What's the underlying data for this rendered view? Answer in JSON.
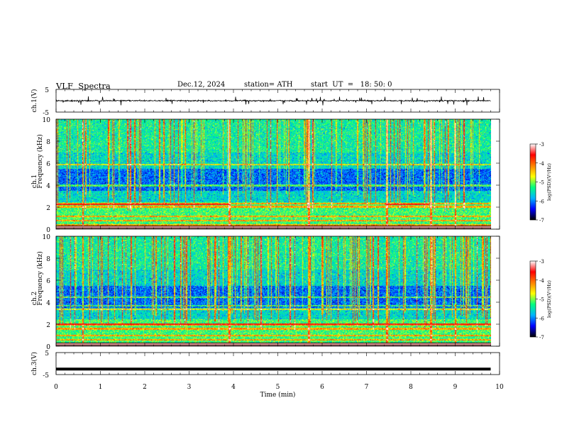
{
  "header": {
    "title": "VLF  Spectra",
    "date": "Dec.12, 2024",
    "station": "station= ATH",
    "start": "start  UT  =   18: 50: 0"
  },
  "chart_data": [
    {
      "type": "line",
      "panel": "ch1-waveform",
      "ylabel": "ch.1(V)",
      "ylim": [
        -5,
        5
      ],
      "y_ticks": [
        "5",
        "-5"
      ],
      "x_range": [
        0,
        9.8
      ],
      "mean_level": 0.0,
      "spike_range": [
        -2,
        2
      ],
      "noise": "dense"
    },
    {
      "type": "heatmap",
      "panel": "ch1-spectrogram",
      "ylabel": "Frequency  (kHz)",
      "channel_label": "ch.1",
      "ylim": [
        0,
        10
      ],
      "y_ticks": [
        "0",
        "2",
        "4",
        "6",
        "8",
        "10"
      ],
      "x_range": [
        0,
        9.8
      ],
      "colorbar": {
        "label": "log(PSD)(V²/Hz)",
        "range": [
          -7,
          -3
        ],
        "ticks": [
          "-3",
          "-4",
          "-5",
          "-6",
          "-7"
        ],
        "colors": [
          "#000000",
          "#0000ff",
          "#00b4ff",
          "#00ff80",
          "#ffff00",
          "#ff8000",
          "#ff0000",
          "#ffffff"
        ]
      },
      "horizontal_lines_kHz": [
        0.4,
        0.8,
        1.2,
        2.05,
        2.35,
        4.0,
        5.9
      ],
      "bright_line_kHz": 2.3,
      "bright_line_segments_min": [
        [
          0,
          3.9
        ],
        [
          7.4,
          8.4
        ]
      ],
      "broadband_events_min": [
        0.6,
        3.9,
        5.7,
        7.45,
        8.45,
        9.0
      ]
    },
    {
      "type": "heatmap",
      "panel": "ch2-spectrogram",
      "ylabel": "Frequency  (kHz)",
      "channel_label": "ch.2",
      "ylim": [
        0,
        10
      ],
      "y_ticks": [
        "0",
        "2",
        "4",
        "6",
        "8",
        "10"
      ],
      "x_range": [
        0,
        9.8
      ],
      "colorbar": {
        "label": "log(PSD)(V²/Hz)",
        "range": [
          -7,
          -3
        ],
        "ticks": [
          "-3",
          "-4",
          "-5",
          "-6",
          "-7"
        ],
        "colors": [
          "#000000",
          "#0000ff",
          "#00b4ff",
          "#00ff80",
          "#ffff00",
          "#ff8000",
          "#ff0000",
          "#ffffff"
        ]
      },
      "horizontal_lines_kHz": [
        0.6,
        1.0,
        1.6,
        2.0,
        3.4,
        3.7,
        4.5
      ],
      "bright_line_kHz": 2.05,
      "bright_line_segments_min": [
        [
          0,
          9.8
        ]
      ],
      "broadband_events_min": [
        0.6,
        3.9,
        5.7,
        7.45,
        8.45,
        9.0
      ]
    },
    {
      "type": "line",
      "panel": "ch3-waveform",
      "ylabel": "ch.3(V)",
      "ylim": [
        -5,
        5
      ],
      "y_ticks": [
        "5",
        "-5"
      ],
      "x_range": [
        0,
        9.8
      ],
      "mean_level": -2.5,
      "noise": "flat-thick"
    }
  ],
  "x_axis": {
    "label": "Time  (min)",
    "range": [
      0,
      10
    ],
    "ticks": [
      "0",
      "1",
      "2",
      "3",
      "4",
      "5",
      "6",
      "7",
      "8",
      "9",
      "10"
    ]
  }
}
